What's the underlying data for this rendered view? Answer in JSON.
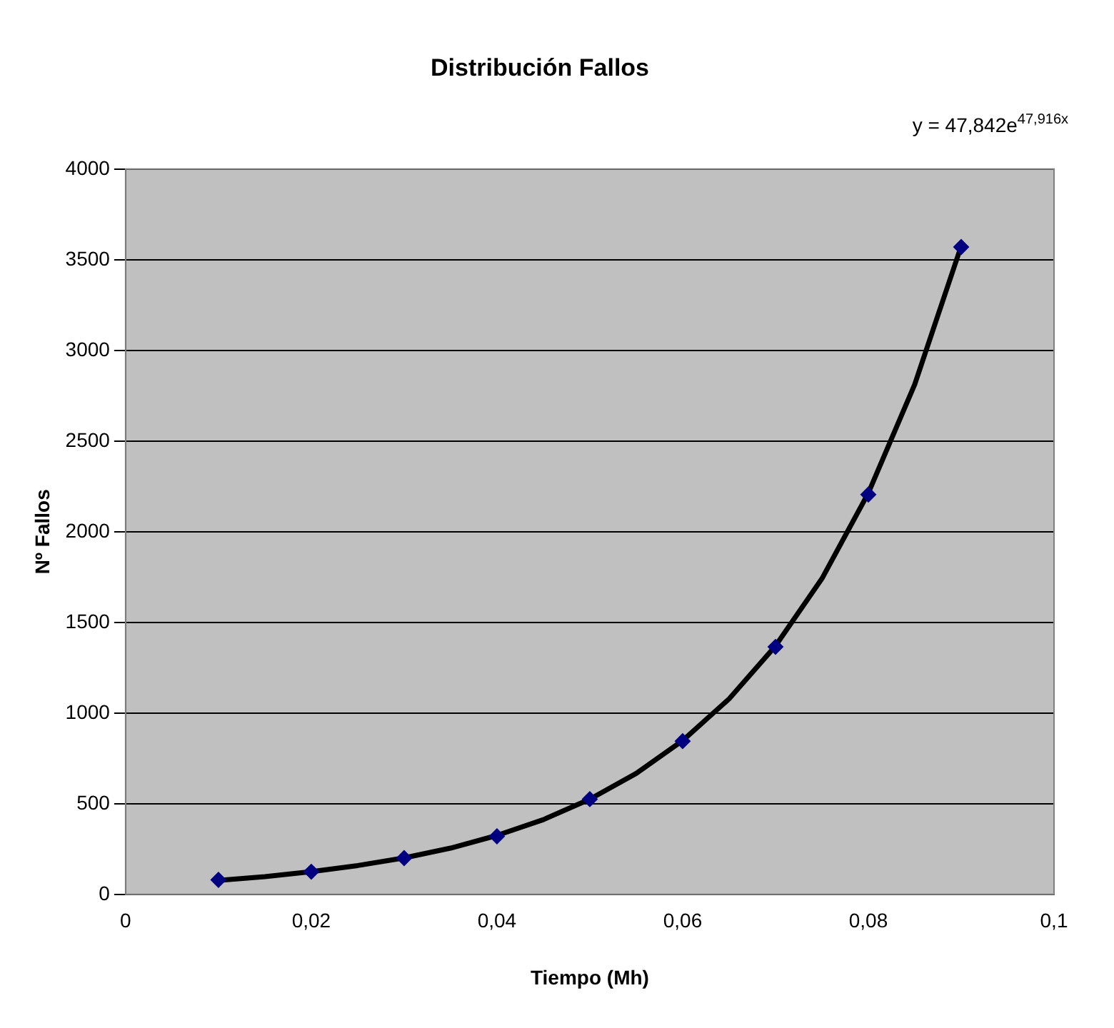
{
  "chart_data": {
    "type": "scatter",
    "title": "Distribución Fallos",
    "xlabel": "Tiempo (Mh)",
    "ylabel": "Nº Fallos",
    "annotations": [
      "y = 47,842e$^{47,916x}$"
    ],
    "x": [
      0.01,
      0.02,
      0.03,
      0.04,
      0.05,
      0.06,
      0.07,
      0.08,
      0.09
    ],
    "xlim": [
      0,
      0.1
    ],
    "xticks": [
      0,
      {
        "value": 0.02,
        "label": "0,02"
      },
      {
        "value": 0.04,
        "label": "0,04"
      },
      {
        "value": 0.06,
        "label": "0,06"
      },
      {
        "value": 0.08,
        "label": "0,08"
      },
      {
        "value": 0.1,
        "label": "0,1"
      }
    ],
    "ylim": [
      0,
      4000
    ],
    "yticks": [
      0,
      500,
      1000,
      1500,
      2000,
      2500,
      3000,
      3500,
      4000
    ],
    "grid": "y",
    "legend": false,
    "marker": "diamond",
    "series": [
      {
        "type": "scatter",
        "color": "#000080",
        "values": [
          80,
          125,
          200,
          320,
          525,
          845,
          1365,
          2205,
          3570
        ]
      },
      {
        "type": "line",
        "color": "#000000",
        "marker": "none",
        "x": [
          0.01,
          0.015,
          0.02,
          0.025,
          0.03,
          0.035,
          0.04,
          0.045,
          0.05,
          0.055,
          0.06,
          0.065,
          0.07,
          0.075,
          0.08,
          0.085,
          0.09
        ],
        "values": [
          77,
          98,
          125,
          159,
          201,
          255,
          325,
          412,
          525,
          667,
          848,
          1078,
          1370,
          1741,
          2213,
          2813,
          3575
        ]
      }
    ]
  }
}
